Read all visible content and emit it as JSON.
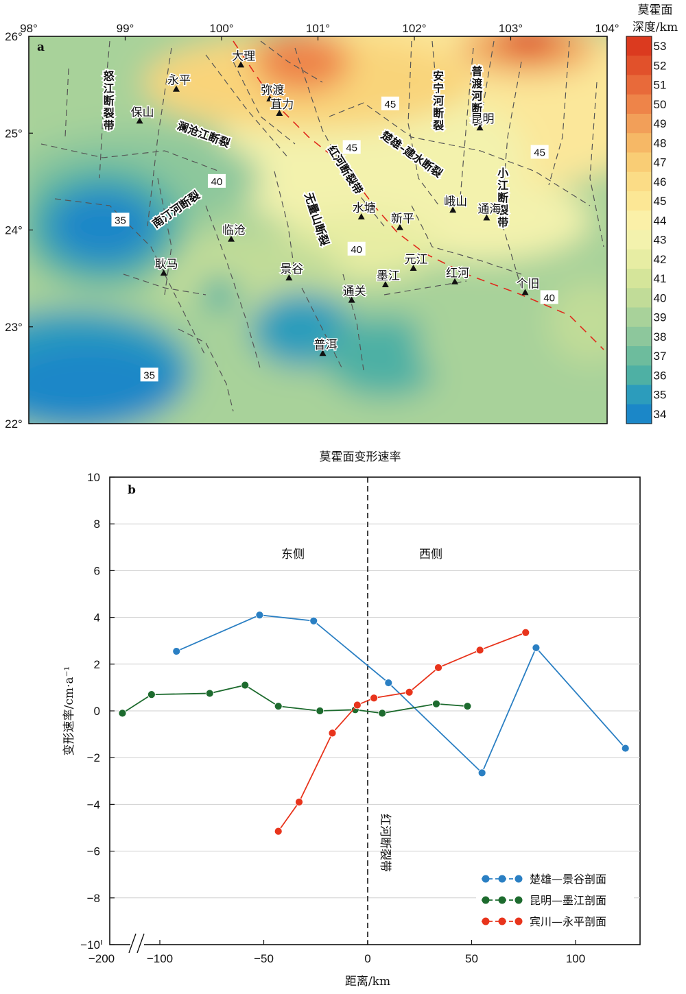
{
  "chart_data": [
    {
      "type": "heatmap",
      "panel_label": "a",
      "colorbar": {
        "title_line1": "莫霍面",
        "title_line2": "深度/km",
        "ticks": [
          53,
          52,
          51,
          50,
          49,
          48,
          47,
          46,
          45,
          44,
          43,
          42,
          41,
          40,
          39,
          38,
          37,
          36,
          35,
          34
        ],
        "colors": [
          "#db3a1f",
          "#e1512b",
          "#e86a3a",
          "#ee8449",
          "#f29f59",
          "#f6b866",
          "#f9cd75",
          "#fbdc86",
          "#fce795",
          "#fbf0a8",
          "#f3f2ad",
          "#e7eda3",
          "#d5e59a",
          "#c1dc98",
          "#a8d29a",
          "#8dc79c",
          "#6dbc9d",
          "#4eb0a4",
          "#2c9cbc",
          "#1b87c8"
        ]
      },
      "x_ticks": [
        "98°",
        "99°",
        "100°",
        "101°",
        "102°",
        "103°",
        "104°"
      ],
      "y_ticks": [
        "26°",
        "25°",
        "24°",
        "23°",
        "22°"
      ],
      "xlim": [
        98,
        104
      ],
      "ylim": [
        22,
        26
      ],
      "contour_labels": [
        {
          "text": "45",
          "lon": 101.75,
          "lat": 25.3
        },
        {
          "text": "45",
          "lon": 101.35,
          "lat": 24.85
        },
        {
          "text": "45",
          "lon": 103.3,
          "lat": 24.8
        },
        {
          "text": "40",
          "lon": 99.95,
          "lat": 24.5
        },
        {
          "text": "40",
          "lon": 101.4,
          "lat": 23.8
        },
        {
          "text": "40",
          "lon": 103.4,
          "lat": 23.3
        },
        {
          "text": "35",
          "lon": 98.95,
          "lat": 24.1
        },
        {
          "text": "35",
          "lon": 99.25,
          "lat": 22.5
        }
      ],
      "places": [
        {
          "name": "大理",
          "lon": 100.2,
          "lat": 25.7
        },
        {
          "name": "永平",
          "lon": 99.53,
          "lat": 25.45
        },
        {
          "name": "弥渡",
          "lon": 100.5,
          "lat": 25.35
        },
        {
          "name": "保山",
          "lon": 99.15,
          "lat": 25.12
        },
        {
          "name": "苴力",
          "lon": 100.6,
          "lat": 25.2
        },
        {
          "name": "昆明",
          "lon": 102.68,
          "lat": 25.05
        },
        {
          "name": "临沧",
          "lon": 100.1,
          "lat": 23.9
        },
        {
          "name": "水塘",
          "lon": 101.45,
          "lat": 24.13
        },
        {
          "name": "新平",
          "lon": 101.85,
          "lat": 24.02
        },
        {
          "name": "峨山",
          "lon": 102.4,
          "lat": 24.2
        },
        {
          "name": "通海",
          "lon": 102.75,
          "lat": 24.12
        },
        {
          "name": "耿马",
          "lon": 99.4,
          "lat": 23.55
        },
        {
          "name": "景谷",
          "lon": 100.7,
          "lat": 23.5
        },
        {
          "name": "墨江",
          "lon": 101.7,
          "lat": 23.43
        },
        {
          "name": "元江",
          "lon": 101.99,
          "lat": 23.6
        },
        {
          "name": "红河",
          "lon": 102.42,
          "lat": 23.46
        },
        {
          "name": "个旧",
          "lon": 103.15,
          "lat": 23.35
        },
        {
          "name": "通关",
          "lon": 101.35,
          "lat": 23.27
        },
        {
          "name": "普洱",
          "lon": 101.05,
          "lat": 22.72
        }
      ],
      "faults": [
        {
          "name": "怒江断裂带",
          "lon": 98.83,
          "lat": 25.55,
          "vertical": true
        },
        {
          "name": "澜沧江断裂",
          "lon": 99.8,
          "lat": 24.95,
          "rotate": 20
        },
        {
          "name": "红河断裂带",
          "lon": 101.25,
          "lat": 24.6,
          "rotate": 58
        },
        {
          "name": "楚雄–建水断裂",
          "lon": 101.95,
          "lat": 24.75,
          "rotate": 35
        },
        {
          "name": "安宁河断裂",
          "lon": 102.25,
          "lat": 25.55,
          "vertical": true
        },
        {
          "name": "普渡河断裂",
          "lon": 102.65,
          "lat": 25.6,
          "vertical": true
        },
        {
          "name": "小江断裂带",
          "lon": 102.92,
          "lat": 24.55,
          "vertical": true
        },
        {
          "name": "无量山断裂",
          "lon": 100.95,
          "lat": 24.1,
          "rotate": 72
        },
        {
          "name": "南汀河断裂",
          "lon": 99.55,
          "lat": 24.18,
          "rotate": -35
        }
      ]
    },
    {
      "type": "line",
      "panel_label": "b",
      "title": "莫霍面变形速率",
      "xlabel": "距离/km",
      "ylabel": "变形速率/cm·a⁻¹",
      "xlim": [
        -210,
        130
      ],
      "ylim": [
        -10,
        10
      ],
      "x_ticks": [
        -200,
        -100,
        -50,
        0,
        50,
        100
      ],
      "x_tick_labels": [
        "−200",
        "−100",
        "−50",
        "0",
        "50",
        "100"
      ],
      "y_ticks": [
        10,
        8,
        6,
        4,
        2,
        0,
        -2,
        -4,
        -6,
        -8,
        -10
      ],
      "y_tick_labels": [
        "10",
        "8",
        "6",
        "4",
        "2",
        "0",
        "−2",
        "−4",
        "−6",
        "−8",
        "−10"
      ],
      "annotations": {
        "east": "东侧",
        "west": "西侧",
        "fault": "红河断裂带"
      },
      "series": [
        {
          "name": "楚雄—景谷剖面",
          "color": "#2a7fc3",
          "x": [
            -92,
            -52,
            -26,
            10,
            55,
            81,
            124
          ],
          "y": [
            2.55,
            4.1,
            3.85,
            1.2,
            -2.65,
            2.7,
            -1.6
          ]
        },
        {
          "name": "昆明—墨江剖面",
          "color": "#1d6b2e",
          "x": [
            -118,
            -104,
            -76,
            -59,
            -43,
            -23,
            -6,
            7,
            33,
            48
          ],
          "y": [
            -0.1,
            0.7,
            0.75,
            1.1,
            0.2,
            0.0,
            0.05,
            -0.1,
            0.3,
            0.2
          ]
        },
        {
          "name": "宾川—永平剖面",
          "color": "#e8341c",
          "x": [
            -43,
            -33,
            -17,
            -5,
            3,
            20,
            34,
            54,
            76
          ],
          "y": [
            -5.15,
            -3.9,
            -0.95,
            0.25,
            0.55,
            0.8,
            1.85,
            2.6,
            3.35
          ]
        }
      ]
    }
  ]
}
